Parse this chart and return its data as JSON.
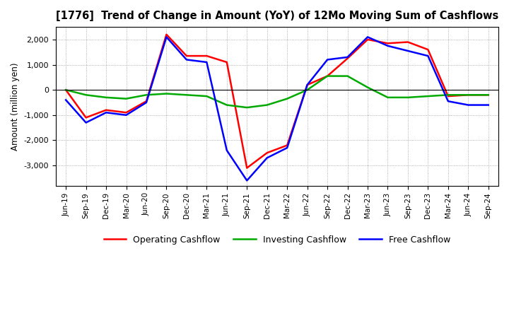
{
  "title": "[1776]  Trend of Change in Amount (YoY) of 12Mo Moving Sum of Cashflows",
  "ylabel": "Amount (million yen)",
  "labels": [
    "Jun-19",
    "Sep-19",
    "Dec-19",
    "Mar-20",
    "Jun-20",
    "Sep-20",
    "Dec-20",
    "Mar-21",
    "Jun-21",
    "Sep-21",
    "Dec-21",
    "Mar-22",
    "Jun-22",
    "Sep-22",
    "Dec-22",
    "Mar-23",
    "Jun-23",
    "Sep-23",
    "Dec-23",
    "Mar-24",
    "Jun-24",
    "Sep-24"
  ],
  "operating": [
    0,
    -1100,
    -800,
    -900,
    -450,
    2200,
    1350,
    1350,
    1100,
    -3100,
    -2500,
    -2200,
    200,
    550,
    1250,
    2000,
    1850,
    1900,
    1600,
    -250,
    -200,
    -200
  ],
  "investing": [
    0,
    -200,
    -300,
    -350,
    -200,
    -150,
    -200,
    -250,
    -600,
    -700,
    -600,
    -350,
    0,
    550,
    550,
    100,
    -300,
    -300,
    -250,
    -200,
    -200,
    -200
  ],
  "free": [
    -400,
    -1300,
    -900,
    -1000,
    -500,
    2100,
    1200,
    1100,
    -2400,
    -3600,
    -2700,
    -2300,
    200,
    1200,
    1300,
    2100,
    1750,
    1550,
    1350,
    -450,
    -600,
    -600
  ],
  "operating_color": "#ff0000",
  "investing_color": "#00aa00",
  "free_color": "#0000ff",
  "ylim": [
    -3800,
    2500
  ],
  "yticks": [
    -3000,
    -2000,
    -1000,
    0,
    1000,
    2000
  ],
  "background_color": "#ffffff",
  "grid_color": "#999999"
}
